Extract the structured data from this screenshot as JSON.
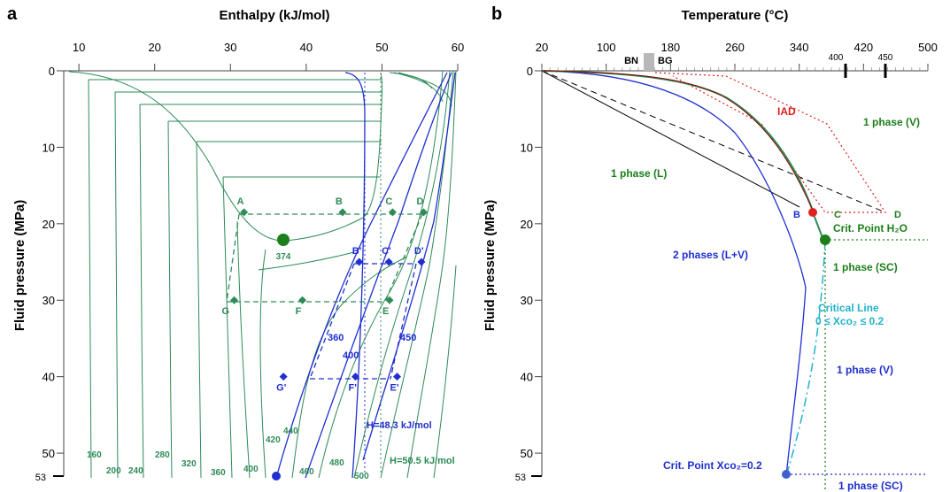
{
  "chart_data": [
    {
      "panel_label": "a",
      "type": "line",
      "xlabel": "Enthalpy (kJ/mol)",
      "ylabel": "Fluid pressure (MPa)",
      "x_ticks": [
        10,
        20,
        30,
        40,
        50,
        60
      ],
      "y_ticks": [
        0,
        10,
        20,
        30,
        40,
        50
      ],
      "y_extra_tick": "53",
      "xlim": [
        8,
        60
      ],
      "ylim": [
        0,
        53
      ],
      "critical_point": {
        "label": "374",
        "x": 37.5,
        "y": 22
      },
      "point_labels": [
        {
          "label": "A",
          "x": 31.8,
          "y": 18.5
        },
        {
          "label": "B",
          "x": 44.8,
          "y": 18.5
        },
        {
          "label": "C",
          "x": 51.4,
          "y": 18.5
        },
        {
          "label": "D",
          "x": 55.5,
          "y": 18.5
        },
        {
          "label": "E",
          "x": 51.0,
          "y": 30
        },
        {
          "label": "F",
          "x": 39.5,
          "y": 30
        },
        {
          "label": "G",
          "x": 30.5,
          "y": 30
        },
        {
          "label": "B'",
          "x": 47.0,
          "y": 25
        },
        {
          "label": "C'",
          "x": 50.9,
          "y": 25
        },
        {
          "label": "D'",
          "x": 55.2,
          "y": 25
        },
        {
          "label": "E'",
          "x": 52.0,
          "y": 40
        },
        {
          "label": "F'",
          "x": 46.5,
          "y": 40
        },
        {
          "label": "G'",
          "x": 37.0,
          "y": 40
        }
      ],
      "isotherm_labels_green": [
        "160",
        "200",
        "240",
        "280",
        "320",
        "360",
        "400",
        "420",
        "440",
        "460",
        "480",
        "500"
      ],
      "isotherm_labels_blue": [
        "360",
        "400",
        "450"
      ],
      "enthalpy_lines": [
        {
          "label": "H=48.3 kJ/mol",
          "x": 48.3
        },
        {
          "label": "H=50.5 kJ/mol",
          "x": 50.5
        }
      ]
    },
    {
      "panel_label": "b",
      "type": "line",
      "xlabel": "Temperature (°C)",
      "ylabel": "Fluid pressure (MPa)",
      "x_ticks": [
        20,
        100,
        180,
        260,
        340,
        420,
        500
      ],
      "x_extra_ticks": [
        "400",
        "450"
      ],
      "y_ticks": [
        0,
        10,
        20,
        30,
        40,
        50
      ],
      "y_extra_tick": "53",
      "xlim": [
        20,
        500
      ],
      "ylim": [
        0,
        53
      ],
      "bar_labels": [
        "BN",
        "BG"
      ],
      "region_labels": [
        {
          "text": "1 phase (L)",
          "color": "#1b7f1b"
        },
        {
          "text": "1 phase (V)",
          "color": "#1b7f1b"
        },
        {
          "text": "2 phases (L+V)",
          "color": "#1f2fd0"
        },
        {
          "text": "1 phase (SC)",
          "color": "#1b7f1b"
        },
        {
          "text": "1 phase (V)",
          "color": "#1f2fd0"
        },
        {
          "text": "1 phase (SC)",
          "color": "#1f2fd0"
        }
      ],
      "annotations": {
        "iad": "IAD",
        "crit_h2o": "Crit. Point H₂O",
        "crit_line_1": "Critical Line",
        "crit_line_2": "0 ≤ Xco₂ ≤ 0.2",
        "crit_co2": "Crit. Point Xco₂=0.2",
        "B": "B",
        "C": "C",
        "D": "D"
      },
      "critical_point_h2o": {
        "x": 374,
        "y": 22
      },
      "critical_point_co2": {
        "x": 330,
        "y": 53
      },
      "point_red": {
        "x": 356,
        "y": 18.3
      }
    }
  ],
  "colors": {
    "green": "#2e8b57",
    "blue": "#1f2fd0",
    "red": "#e02020",
    "cyan": "#20b2c8"
  }
}
